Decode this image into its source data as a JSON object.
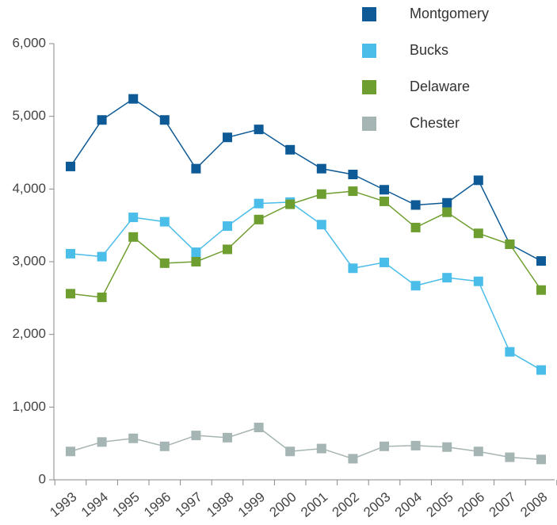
{
  "chart_data": {
    "type": "line",
    "categories": [
      "1993",
      "1994",
      "1995",
      "1996",
      "1997",
      "1998",
      "1999",
      "2000",
      "2001",
      "2002",
      "2003",
      "2004",
      "2005",
      "2006",
      "2007",
      "2008"
    ],
    "series": [
      {
        "name": "Montgomery",
        "color": "#0d5a96",
        "values": [
          4310,
          4950,
          5240,
          4950,
          4280,
          4710,
          4820,
          4540,
          4280,
          4200,
          3990,
          3780,
          3810,
          4120,
          3240,
          3010
        ]
      },
      {
        "name": "Bucks",
        "color": "#4bbde9",
        "values": [
          3110,
          3070,
          3610,
          3550,
          3130,
          3490,
          3800,
          3820,
          3510,
          2910,
          2990,
          2670,
          2780,
          2730,
          1760,
          1510
        ]
      },
      {
        "name": "Delaware",
        "color": "#6f9e30",
        "values": [
          2560,
          2510,
          3340,
          2980,
          3000,
          3170,
          3580,
          3790,
          3930,
          3970,
          3830,
          3470,
          3680,
          3390,
          3240,
          2610
        ]
      },
      {
        "name": "Chester",
        "color": "#a5b5b3",
        "values": [
          390,
          520,
          570,
          460,
          610,
          580,
          720,
          390,
          430,
          290,
          460,
          470,
          450,
          390,
          310,
          280
        ]
      }
    ],
    "ylim": [
      0,
      6000
    ],
    "yticks": [
      0,
      {
        "value": 1000,
        "label": "1,000"
      },
      {
        "value": 2000,
        "label": "2,000"
      },
      {
        "value": 3000,
        "label": "3,000"
      },
      {
        "value": 4000,
        "label": "4,000"
      },
      {
        "value": 5000,
        "label": "5,000"
      },
      {
        "value": 6000,
        "label": "6,000"
      }
    ],
    "legend": "top-right"
  }
}
